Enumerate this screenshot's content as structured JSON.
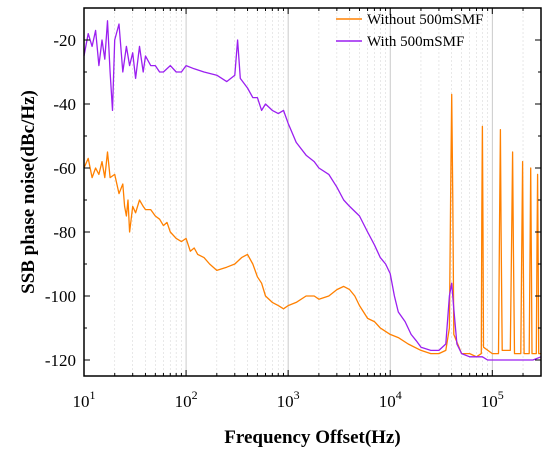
{
  "chart_data": {
    "type": "line",
    "xlabel": "Frequency Offset(Hz)",
    "ylabel": "SSB phase noise(dBc/Hz)",
    "xscale": "log",
    "xlim": [
      10,
      300000
    ],
    "ylim": [
      -125,
      -10
    ],
    "grid": "on (major and minor, vertical)",
    "legend_position": "top-right",
    "x_ticks": [
      {
        "value": 10,
        "base": "10",
        "exp": "1"
      },
      {
        "value": 100,
        "base": "10",
        "exp": "2"
      },
      {
        "value": 1000,
        "base": "10",
        "exp": "3"
      },
      {
        "value": 10000,
        "base": "10",
        "exp": "4"
      },
      {
        "value": 100000,
        "base": "10",
        "exp": "5"
      }
    ],
    "y_ticks": [
      {
        "value": -20,
        "label": "-20"
      },
      {
        "value": -40,
        "label": "-40"
      },
      {
        "value": -60,
        "label": "-60"
      },
      {
        "value": -80,
        "label": "-80"
      },
      {
        "value": -100,
        "label": "-100"
      },
      {
        "value": -120,
        "label": "-120"
      }
    ],
    "series": [
      {
        "name": "Without 500mSMF",
        "color": "#ff8000",
        "points": [
          [
            10,
            -60
          ],
          [
            11,
            -57
          ],
          [
            12,
            -63
          ],
          [
            13,
            -60
          ],
          [
            14,
            -62
          ],
          [
            15,
            -58
          ],
          [
            16,
            -63
          ],
          [
            17,
            -55
          ],
          [
            18,
            -63
          ],
          [
            20,
            -62
          ],
          [
            22,
            -68
          ],
          [
            24,
            -65
          ],
          [
            25,
            -72
          ],
          [
            26,
            -75
          ],
          [
            27,
            -70
          ],
          [
            28,
            -80
          ],
          [
            30,
            -72
          ],
          [
            32,
            -74
          ],
          [
            35,
            -70
          ],
          [
            38,
            -72
          ],
          [
            40,
            -73
          ],
          [
            45,
            -73
          ],
          [
            50,
            -75
          ],
          [
            55,
            -76
          ],
          [
            60,
            -78
          ],
          [
            65,
            -77
          ],
          [
            70,
            -80
          ],
          [
            80,
            -82
          ],
          [
            90,
            -83
          ],
          [
            100,
            -82
          ],
          [
            110,
            -86
          ],
          [
            120,
            -85
          ],
          [
            130,
            -87
          ],
          [
            150,
            -88
          ],
          [
            170,
            -90
          ],
          [
            200,
            -92
          ],
          [
            250,
            -91
          ],
          [
            300,
            -90
          ],
          [
            350,
            -88
          ],
          [
            400,
            -87
          ],
          [
            450,
            -90
          ],
          [
            500,
            -94
          ],
          [
            550,
            -96
          ],
          [
            600,
            -100
          ],
          [
            700,
            -102
          ],
          [
            800,
            -103
          ],
          [
            900,
            -104
          ],
          [
            1000,
            -103
          ],
          [
            1200,
            -102
          ],
          [
            1500,
            -100
          ],
          [
            1800,
            -100
          ],
          [
            2000,
            -101
          ],
          [
            2500,
            -100
          ],
          [
            3000,
            -98
          ],
          [
            3500,
            -97
          ],
          [
            4000,
            -98
          ],
          [
            4500,
            -100
          ],
          [
            5000,
            -103
          ],
          [
            6000,
            -107
          ],
          [
            7000,
            -108
          ],
          [
            8000,
            -110
          ],
          [
            10000,
            -112
          ],
          [
            12000,
            -113
          ],
          [
            15000,
            -115
          ],
          [
            20000,
            -117
          ],
          [
            25000,
            -118
          ],
          [
            30000,
            -118
          ],
          [
            35000,
            -117
          ],
          [
            38000,
            -110
          ],
          [
            39000,
            -70
          ],
          [
            40000,
            -37
          ],
          [
            41000,
            -70
          ],
          [
            42000,
            -112
          ],
          [
            50000,
            -118
          ],
          [
            60000,
            -118
          ],
          [
            70000,
            -119
          ],
          [
            78000,
            -118
          ],
          [
            79000,
            -75
          ],
          [
            80000,
            -47
          ],
          [
            81000,
            -80
          ],
          [
            82000,
            -116
          ],
          [
            100000,
            -118
          ],
          [
            115000,
            -118
          ],
          [
            118000,
            -75
          ],
          [
            120000,
            -48
          ],
          [
            122000,
            -80
          ],
          [
            125000,
            -117
          ],
          [
            150000,
            -117
          ],
          [
            155000,
            -80
          ],
          [
            158000,
            -55
          ],
          [
            161000,
            -85
          ],
          [
            165000,
            -118
          ],
          [
            190000,
            -118
          ],
          [
            195000,
            -80
          ],
          [
            198000,
            -58
          ],
          [
            201000,
            -85
          ],
          [
            205000,
            -118
          ],
          [
            230000,
            -118
          ],
          [
            235000,
            -80
          ],
          [
            238000,
            -60
          ],
          [
            241000,
            -85
          ],
          [
            245000,
            -118
          ],
          [
            270000,
            -118
          ],
          [
            275000,
            -80
          ],
          [
            278000,
            -62
          ],
          [
            281000,
            -85
          ],
          [
            285000,
            -118
          ],
          [
            300000,
            -118
          ]
        ]
      },
      {
        "name": "With 500mSMF",
        "color": "#9b1ff0",
        "points": [
          [
            10,
            -25
          ],
          [
            11,
            -18
          ],
          [
            12,
            -22
          ],
          [
            13,
            -17
          ],
          [
            14,
            -28
          ],
          [
            15,
            -20
          ],
          [
            16,
            -26
          ],
          [
            17,
            -14
          ],
          [
            18,
            -30
          ],
          [
            19,
            -42
          ],
          [
            20,
            -20
          ],
          [
            22,
            -15
          ],
          [
            24,
            -30
          ],
          [
            26,
            -22
          ],
          [
            28,
            -28
          ],
          [
            30,
            -24
          ],
          [
            32,
            -32
          ],
          [
            35,
            -22
          ],
          [
            38,
            -30
          ],
          [
            40,
            -25
          ],
          [
            45,
            -28
          ],
          [
            50,
            -28
          ],
          [
            55,
            -30
          ],
          [
            60,
            -30
          ],
          [
            70,
            -28
          ],
          [
            80,
            -30
          ],
          [
            90,
            -30
          ],
          [
            100,
            -28
          ],
          [
            120,
            -29
          ],
          [
            150,
            -30
          ],
          [
            200,
            -31
          ],
          [
            250,
            -33
          ],
          [
            300,
            -31
          ],
          [
            320,
            -20
          ],
          [
            340,
            -32
          ],
          [
            400,
            -35
          ],
          [
            450,
            -38
          ],
          [
            500,
            -38
          ],
          [
            550,
            -42
          ],
          [
            600,
            -40
          ],
          [
            700,
            -42
          ],
          [
            800,
            -43
          ],
          [
            900,
            -42
          ],
          [
            1000,
            -46
          ],
          [
            1200,
            -52
          ],
          [
            1500,
            -56
          ],
          [
            1800,
            -58
          ],
          [
            2000,
            -60
          ],
          [
            2500,
            -62
          ],
          [
            3000,
            -66
          ],
          [
            3500,
            -70
          ],
          [
            4000,
            -72
          ],
          [
            5000,
            -75
          ],
          [
            6000,
            -80
          ],
          [
            7000,
            -84
          ],
          [
            8000,
            -88
          ],
          [
            9000,
            -90
          ],
          [
            10000,
            -93
          ],
          [
            11000,
            -100
          ],
          [
            12000,
            -105
          ],
          [
            14000,
            -108
          ],
          [
            16000,
            -112
          ],
          [
            18000,
            -114
          ],
          [
            20000,
            -116
          ],
          [
            25000,
            -117
          ],
          [
            30000,
            -117
          ],
          [
            35000,
            -115
          ],
          [
            38000,
            -100
          ],
          [
            40000,
            -96
          ],
          [
            42000,
            -104
          ],
          [
            45000,
            -115
          ],
          [
            50000,
            -118
          ],
          [
            60000,
            -119
          ],
          [
            70000,
            -119
          ],
          [
            80000,
            -119
          ],
          [
            90000,
            -120
          ],
          [
            100000,
            -120
          ],
          [
            120000,
            -120
          ],
          [
            150000,
            -120
          ],
          [
            200000,
            -120
          ],
          [
            250000,
            -120
          ],
          [
            300000,
            -119
          ]
        ]
      }
    ]
  }
}
